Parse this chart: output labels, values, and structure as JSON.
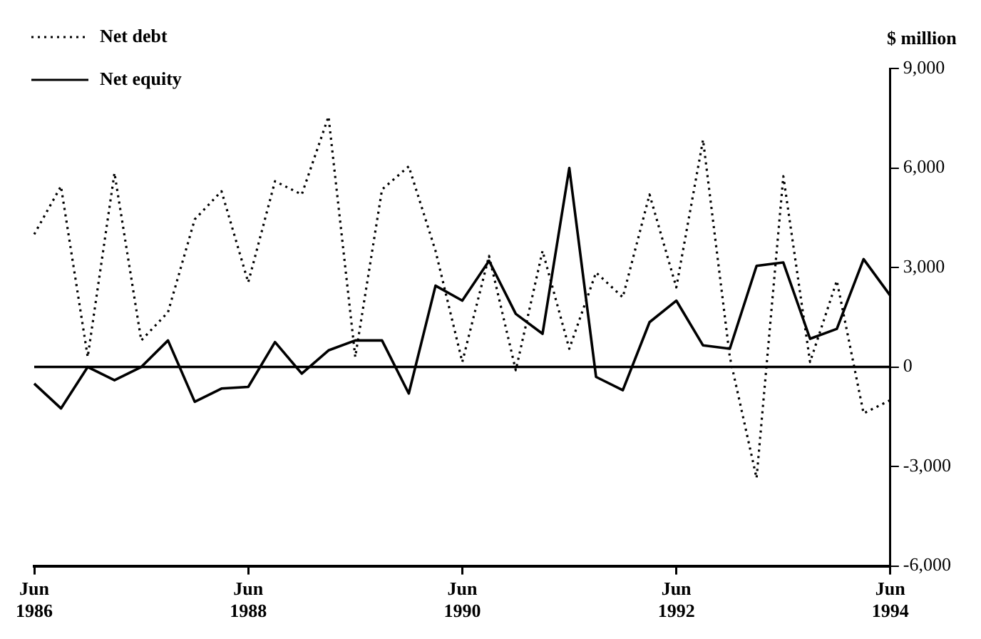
{
  "chart_data": {
    "type": "line",
    "ylabel": "$ million",
    "categories": [
      "Jun 1986",
      null,
      null,
      null,
      null,
      null,
      null,
      null,
      "Jun 1988",
      null,
      null,
      null,
      null,
      null,
      null,
      null,
      "Jun 1990",
      null,
      null,
      null,
      null,
      null,
      null,
      null,
      "Jun 1992",
      null,
      null,
      null,
      null,
      null,
      null,
      null,
      "Jun 1994"
    ],
    "series": [
      {
        "name": "Net debt",
        "color": "#000000",
        "line_style": "dotted",
        "values": [
          4000,
          5450,
          300,
          5850,
          800,
          1650,
          4450,
          5300,
          2550,
          5600,
          5200,
          7550,
          300,
          5350,
          6050,
          3500,
          150,
          3350,
          -100,
          3500,
          550,
          2850,
          2100,
          5200,
          2400,
          6850,
          300,
          -3350,
          5750,
          150,
          2600,
          -1400,
          -1000
        ]
      },
      {
        "name": "Net equity",
        "color": "#000000",
        "line_style": "solid",
        "values": [
          -500,
          -1250,
          0,
          -400,
          0,
          800,
          -1050,
          -650,
          -600,
          750,
          -200,
          500,
          800,
          800,
          -800,
          2450,
          2000,
          3200,
          1600,
          1000,
          6000,
          -300,
          -700,
          1350,
          2000,
          650,
          550,
          3050,
          3150,
          850,
          1150,
          3250,
          2150
        ]
      }
    ],
    "ylim": [
      -6000,
      9000
    ],
    "yticks": [
      {
        "value": -6000,
        "label": "-6,000"
      },
      {
        "value": -3000,
        "label": "-3,000"
      },
      0,
      {
        "value": 3000,
        "label": "3,000"
      },
      {
        "value": 6000,
        "label": "6,000"
      },
      {
        "value": 9000,
        "label": "9,000"
      }
    ],
    "ref_lines": [
      {
        "axis": "y",
        "value": 0,
        "color": "#000000"
      }
    ],
    "grid": false,
    "legend": "top left",
    "marker": "none"
  }
}
